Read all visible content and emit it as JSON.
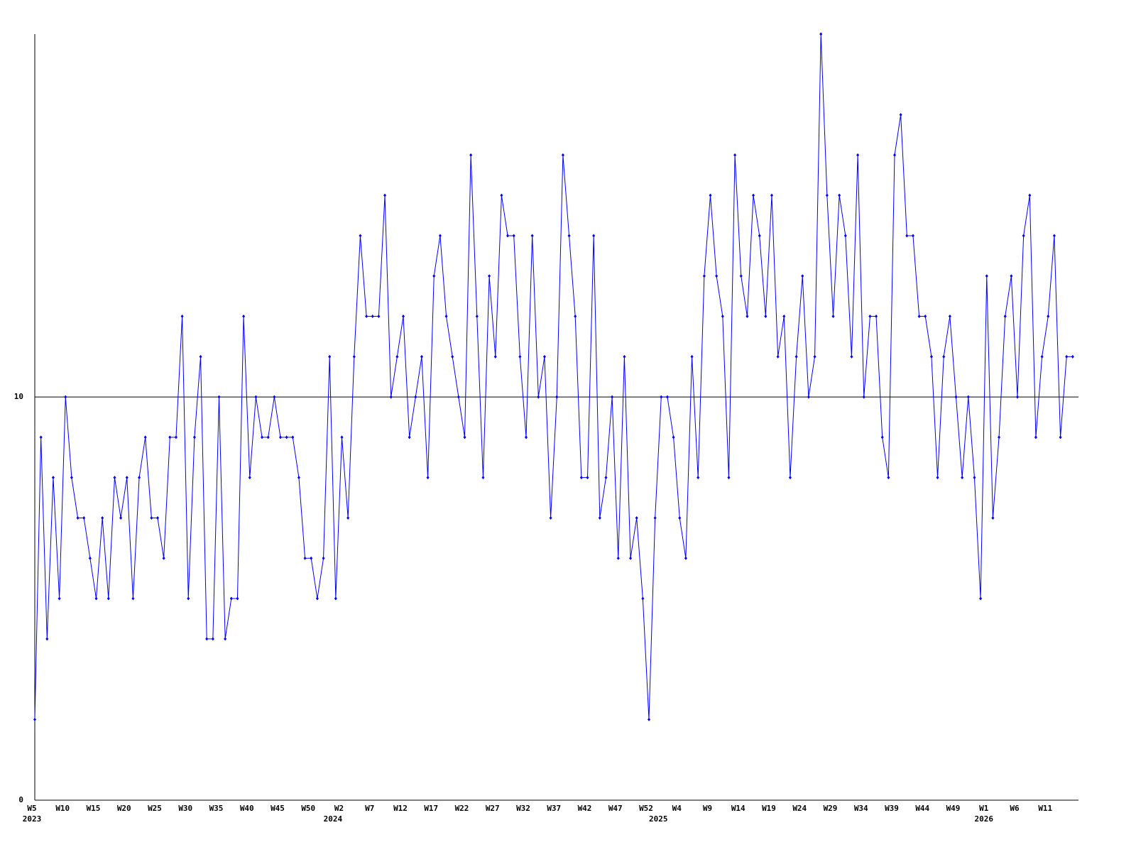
{
  "chart_data": {
    "type": "line",
    "categories": [
      "W5",
      null,
      null,
      null,
      null,
      "W10",
      null,
      null,
      null,
      null,
      "W15",
      null,
      null,
      null,
      null,
      "W20",
      null,
      null,
      null,
      null,
      "W25",
      null,
      null,
      null,
      null,
      "W30",
      null,
      null,
      null,
      null,
      "W35",
      null,
      null,
      null,
      null,
      "W40",
      null,
      null,
      null,
      null,
      "W45",
      null,
      null,
      null,
      null,
      "W50",
      null,
      null,
      null,
      null,
      "W2",
      null,
      null,
      null,
      null,
      "W7",
      null,
      null,
      null,
      null,
      "W12",
      null,
      null,
      null,
      null,
      "W17",
      null,
      null,
      null,
      null,
      "W22",
      null,
      null,
      null,
      null,
      "W27",
      null,
      null,
      null,
      null,
      "W32",
      null,
      null,
      null,
      null,
      "W37",
      null,
      null,
      null,
      null,
      "W42",
      null,
      null,
      null,
      null,
      "W47",
      null,
      null,
      null,
      null,
      "W52",
      null,
      null,
      null,
      null,
      "W4",
      null,
      null,
      null,
      null,
      "W9",
      null,
      null,
      null,
      null,
      "W14",
      null,
      null,
      null,
      null,
      "W19",
      null,
      null,
      null,
      null,
      "W24",
      null,
      null,
      null,
      null,
      "W29",
      null,
      null,
      null,
      null,
      "W34",
      null,
      null,
      null,
      null,
      "W39",
      null,
      null,
      null,
      null,
      "W44",
      null,
      null,
      null,
      null,
      "W49",
      null,
      null,
      null,
      null,
      "W1",
      null,
      null,
      null,
      null,
      "W6",
      null,
      null,
      null,
      null,
      "W11",
      null,
      null,
      null,
      null
    ],
    "category_years": [
      "2023",
      null,
      null,
      null,
      null,
      null,
      null,
      null,
      null,
      null,
      null,
      null,
      null,
      null,
      null,
      null,
      null,
      null,
      null,
      null,
      null,
      null,
      null,
      null,
      null,
      null,
      null,
      null,
      null,
      null,
      null,
      null,
      null,
      null,
      null,
      null,
      null,
      null,
      null,
      null,
      null,
      null,
      null,
      null,
      null,
      null,
      null,
      null,
      null,
      "2024",
      null,
      null,
      null,
      null,
      null,
      null,
      null,
      null,
      null,
      null,
      null,
      null,
      null,
      null,
      null,
      null,
      null,
      null,
      null,
      null,
      null,
      null,
      null,
      null,
      null,
      null,
      null,
      null,
      null,
      null,
      null,
      null,
      null,
      null,
      null,
      null,
      null,
      null,
      null,
      null,
      null,
      null,
      null,
      null,
      null,
      null,
      null,
      null,
      null,
      null,
      null,
      null,
      "2025",
      null,
      null,
      null,
      null,
      null,
      null,
      null,
      null,
      null,
      null,
      null,
      null,
      null,
      null,
      null,
      null,
      null,
      null,
      null,
      null,
      null,
      null,
      null,
      null,
      null,
      null,
      null,
      null,
      null,
      null,
      null,
      null,
      null,
      null,
      null,
      null,
      null,
      null,
      null,
      null,
      null,
      null,
      null,
      null,
      null,
      null,
      null,
      null,
      null,
      null,
      null,
      null,
      "2026",
      null,
      null,
      null,
      null,
      null,
      null,
      null,
      null,
      null,
      null,
      null,
      null,
      null,
      null
    ],
    "values": [
      2,
      9,
      4,
      8,
      5,
      10,
      8,
      7,
      7,
      6,
      5,
      7,
      5,
      8,
      7,
      8,
      5,
      8,
      9,
      7,
      7,
      6,
      9,
      9,
      12,
      5,
      9,
      11,
      4,
      4,
      10,
      4,
      5,
      5,
      12,
      8,
      10,
      9,
      9,
      10,
      9,
      9,
      9,
      8,
      6,
      6,
      5,
      6,
      11,
      5,
      9,
      7,
      11,
      14,
      12,
      12,
      12,
      15,
      10,
      11,
      12,
      9,
      10,
      11,
      8,
      13,
      14,
      12,
      11,
      10,
      9,
      16,
      12,
      8,
      13,
      11,
      15,
      14,
      14,
      11,
      9,
      14,
      10,
      11,
      7,
      10,
      16,
      14,
      12,
      8,
      8,
      14,
      7,
      8,
      10,
      6,
      11,
      6,
      7,
      5,
      2,
      7,
      10,
      10,
      9,
      7,
      6,
      11,
      8,
      13,
      15,
      13,
      12,
      8,
      16,
      13,
      12,
      15,
      14,
      12,
      15,
      11,
      12,
      8,
      11,
      13,
      10,
      11,
      19,
      15,
      12,
      15,
      14,
      11,
      16,
      10,
      12,
      12,
      9,
      8,
      16,
      17,
      14,
      14,
      12,
      12,
      11,
      8,
      11,
      12,
      10,
      8,
      10,
      8,
      5,
      13,
      7,
      9,
      12,
      13,
      10,
      14,
      15,
      9,
      11,
      12,
      14,
      9,
      11,
      11
    ],
    "color": "#0000ff",
    "ylim": [
      0,
      19
    ],
    "yticks": [
      0,
      10
    ],
    "grid": true
  }
}
